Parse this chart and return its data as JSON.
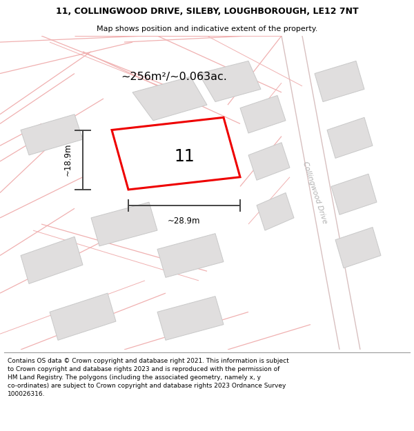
{
  "title_line1": "11, COLLINGWOOD DRIVE, SILEBY, LOUGHBOROUGH, LE12 7NT",
  "title_line2": "Map shows position and indicative extent of the property.",
  "footer_text": "Contains OS data © Crown copyright and database right 2021. This information is subject\nto Crown copyright and database rights 2023 and is reproduced with the permission of\nHM Land Registry. The polygons (including the associated geometry, namely x, y\nco-ordinates) are subject to Crown copyright and database rights 2023 Ordnance Survey\n100026316.",
  "area_text": "~256m²/~0.063ac.",
  "dim_width": "~28.9m",
  "dim_height": "~18.9m",
  "property_number": "11",
  "street_name": "Collingwood Drive",
  "map_bg": "#faf7f7",
  "building_color": "#e0dede",
  "building_edge": "#c8c8c8",
  "road_line_color": "#f0b0b0",
  "road_line_color2": "#d8c0c0",
  "property_color": "#ee0000",
  "dim_line_color": "#444444"
}
